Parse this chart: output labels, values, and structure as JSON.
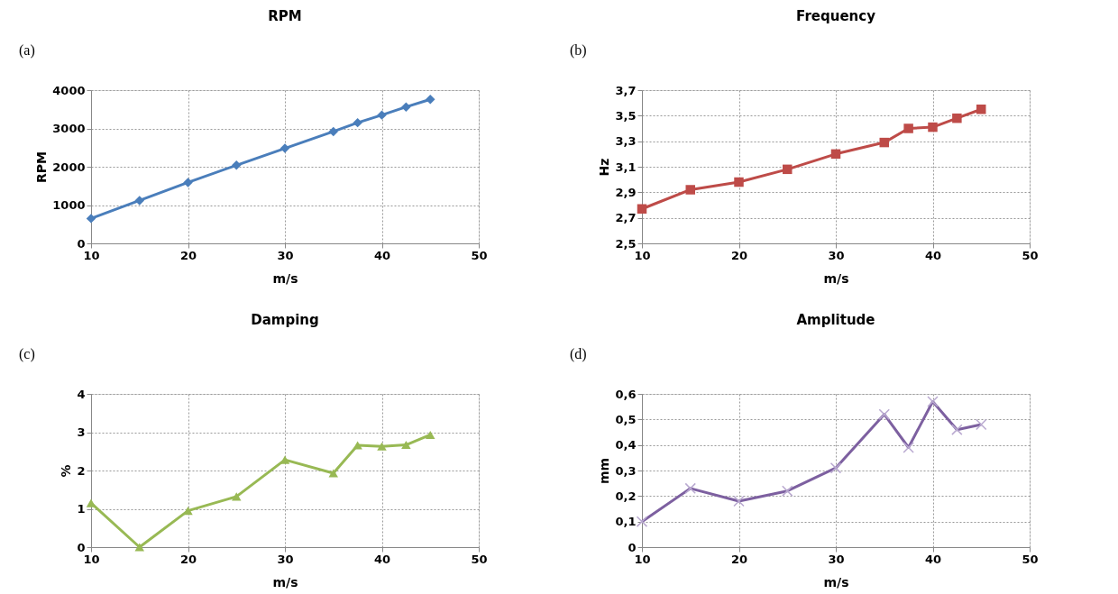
{
  "chart_data": [
    {
      "type": "line",
      "title": "RPM",
      "annotations": [
        "(a)"
      ],
      "xlabel": "m/s",
      "ylabel": "RPM",
      "x": [
        10,
        15,
        20,
        25,
        30,
        35,
        37.5,
        40,
        42.5,
        45
      ],
      "marker": "diamond",
      "grid": true,
      "series": [
        {
          "color": "#4a7ebb",
          "values": [
            650,
            1120,
            1590,
            2040,
            2480,
            2920,
            3150,
            3350,
            3560,
            3760
          ]
        }
      ],
      "xlim": [
        10,
        50
      ],
      "xticks": [
        10,
        20,
        30,
        40,
        50
      ],
      "ylim": [
        0,
        4000
      ],
      "yticks": [
        0,
        1000,
        2000,
        3000,
        4000
      ]
    },
    {
      "type": "line",
      "title": "Frequency",
      "annotations": [
        "(b)"
      ],
      "xlabel": "m/s",
      "ylabel": "Hz",
      "x": [
        10,
        15,
        20,
        25,
        30,
        35,
        37.5,
        40,
        42.5,
        45
      ],
      "marker": "square",
      "grid": true,
      "series": [
        {
          "color": "#be4b48",
          "values": [
            2.77,
            2.92,
            2.98,
            3.08,
            3.2,
            3.29,
            3.4,
            3.41,
            3.48,
            3.55
          ]
        }
      ],
      "xlim": [
        10,
        50
      ],
      "xticks": [
        10,
        20,
        30,
        40,
        50
      ],
      "ylim": [
        2.5,
        3.7
      ],
      "yticks": [
        {
          "value": 2.5,
          "label": "2,5"
        },
        {
          "value": 2.7,
          "label": "2,7"
        },
        {
          "value": 2.9,
          "label": "2,9"
        },
        {
          "value": 3.1,
          "label": "3,1"
        },
        {
          "value": 3.3,
          "label": "3,3"
        },
        {
          "value": 3.5,
          "label": "3,5"
        },
        {
          "value": 3.7,
          "label": "3,7"
        }
      ]
    },
    {
      "type": "line",
      "title": "Damping",
      "annotations": [
        "(c)"
      ],
      "xlabel": "m/s",
      "ylabel": "%",
      "x": [
        10,
        15,
        20,
        25,
        30,
        35,
        37.5,
        40,
        42.5,
        45
      ],
      "marker": "triangle",
      "grid": true,
      "series": [
        {
          "color": "#98b954",
          "values": [
            1.15,
            0.0,
            0.95,
            1.32,
            2.28,
            1.93,
            2.66,
            2.63,
            2.67,
            2.93
          ]
        }
      ],
      "xlim": [
        10,
        50
      ],
      "xticks": [
        10,
        20,
        30,
        40,
        50
      ],
      "ylim": [
        0,
        4
      ],
      "yticks": [
        0,
        1,
        2,
        3,
        4
      ]
    },
    {
      "type": "line",
      "title": "Amplitude",
      "annotations": [
        "(d)"
      ],
      "xlabel": "m/s",
      "ylabel": "mm",
      "x": [
        10,
        15,
        20,
        25,
        30,
        35,
        37.5,
        40,
        42.5,
        45
      ],
      "marker": "cross",
      "grid": true,
      "series": [
        {
          "color": "#7d60a0",
          "values": [
            0.1,
            0.23,
            0.18,
            0.22,
            0.31,
            0.52,
            0.39,
            0.57,
            0.46,
            0.48
          ]
        }
      ],
      "xlim": [
        10,
        50
      ],
      "xticks": [
        10,
        20,
        30,
        40,
        50
      ],
      "ylim": [
        0,
        0.6
      ],
      "yticks": [
        0,
        {
          "value": 0.1,
          "label": "0,1"
        },
        {
          "value": 0.2,
          "label": "0,2"
        },
        {
          "value": 0.3,
          "label": "0,3"
        },
        {
          "value": 0.4,
          "label": "0,4"
        },
        {
          "value": 0.5,
          "label": "0,5"
        },
        {
          "value": 0.6,
          "label": "0,6"
        }
      ]
    }
  ]
}
